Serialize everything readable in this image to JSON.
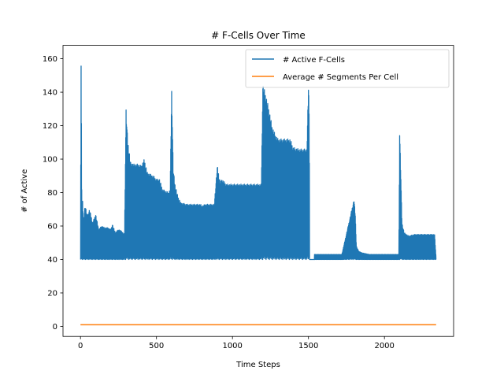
{
  "chart_data": {
    "type": "line",
    "title": "# F-Cells Over Time",
    "xlabel": "Time Steps",
    "ylabel": "# of Active",
    "xlim": [
      -115,
      2455
    ],
    "ylim": [
      -6,
      168
    ],
    "xticks": [
      0,
      500,
      1000,
      1500,
      2000
    ],
    "yticks": [
      0,
      20,
      40,
      60,
      80,
      100,
      120,
      140,
      160
    ],
    "grid": false,
    "legend_position": "top-right",
    "series": [
      {
        "name": "# Active F-Cells",
        "color": "#1f77b4",
        "baseline": 40,
        "envelope": [
          [
            0,
            40
          ],
          [
            4,
            160
          ],
          [
            8,
            85
          ],
          [
            10,
            60
          ],
          [
            14,
            75
          ],
          [
            20,
            62
          ],
          [
            30,
            73
          ],
          [
            45,
            66
          ],
          [
            60,
            70
          ],
          [
            80,
            62
          ],
          [
            100,
            67
          ],
          [
            120,
            58
          ],
          [
            140,
            60
          ],
          [
            160,
            59
          ],
          [
            180,
            59
          ],
          [
            200,
            58
          ],
          [
            210,
            61
          ],
          [
            230,
            56
          ],
          [
            250,
            58
          ],
          [
            270,
            57
          ],
          [
            290,
            55
          ],
          [
            300,
            130
          ],
          [
            310,
            112
          ],
          [
            320,
            105
          ],
          [
            330,
            98
          ],
          [
            350,
            97
          ],
          [
            380,
            97
          ],
          [
            400,
            96
          ],
          [
            420,
            100
          ],
          [
            440,
            92
          ],
          [
            460,
            91
          ],
          [
            480,
            90
          ],
          [
            500,
            88
          ],
          [
            520,
            88
          ],
          [
            540,
            82
          ],
          [
            560,
            81
          ],
          [
            580,
            80
          ],
          [
            590,
            82
          ],
          [
            600,
            142
          ],
          [
            610,
            95
          ],
          [
            620,
            86
          ],
          [
            640,
            78
          ],
          [
            660,
            74
          ],
          [
            700,
            73
          ],
          [
            750,
            73
          ],
          [
            790,
            73
          ],
          [
            800,
            72
          ],
          [
            820,
            73
          ],
          [
            840,
            73
          ],
          [
            860,
            73
          ],
          [
            880,
            73
          ],
          [
            900,
            96
          ],
          [
            920,
            86
          ],
          [
            930,
            88
          ],
          [
            960,
            85
          ],
          [
            1000,
            85
          ],
          [
            1050,
            85
          ],
          [
            1100,
            85
          ],
          [
            1150,
            85
          ],
          [
            1190,
            85
          ],
          [
            1200,
            145
          ],
          [
            1220,
            138
          ],
          [
            1240,
            130
          ],
          [
            1260,
            120
          ],
          [
            1280,
            115
          ],
          [
            1300,
            112
          ],
          [
            1340,
            112
          ],
          [
            1380,
            112
          ],
          [
            1400,
            107
          ],
          [
            1440,
            106
          ],
          [
            1490,
            106
          ],
          [
            1500,
            145
          ],
          [
            1505,
            131
          ],
          [
            1508,
            40
          ]
        ],
        "tail_bursts": [
          [
            1540,
            43
          ],
          [
            1600,
            43
          ],
          [
            1650,
            43
          ],
          [
            1680,
            43
          ],
          [
            1700,
            43
          ],
          [
            1720,
            43
          ],
          [
            1800,
            76
          ],
          [
            1808,
            67
          ],
          [
            1815,
            48
          ],
          [
            1830,
            45
          ],
          [
            1850,
            44
          ],
          [
            1900,
            43
          ],
          [
            1950,
            43
          ],
          [
            2000,
            43
          ],
          [
            2040,
            43
          ],
          [
            2095,
            43
          ],
          [
            2100,
            118
          ],
          [
            2108,
            90
          ],
          [
            2115,
            62
          ],
          [
            2130,
            56
          ],
          [
            2160,
            54
          ],
          [
            2200,
            55
          ],
          [
            2250,
            55
          ],
          [
            2300,
            55
          ],
          [
            2330,
            55
          ],
          [
            2340,
            40
          ]
        ]
      },
      {
        "name": "Average # Segments Per Cell",
        "color": "#ff7f0e",
        "values": [
          [
            0,
            1
          ],
          [
            2340,
            1
          ]
        ]
      }
    ]
  }
}
